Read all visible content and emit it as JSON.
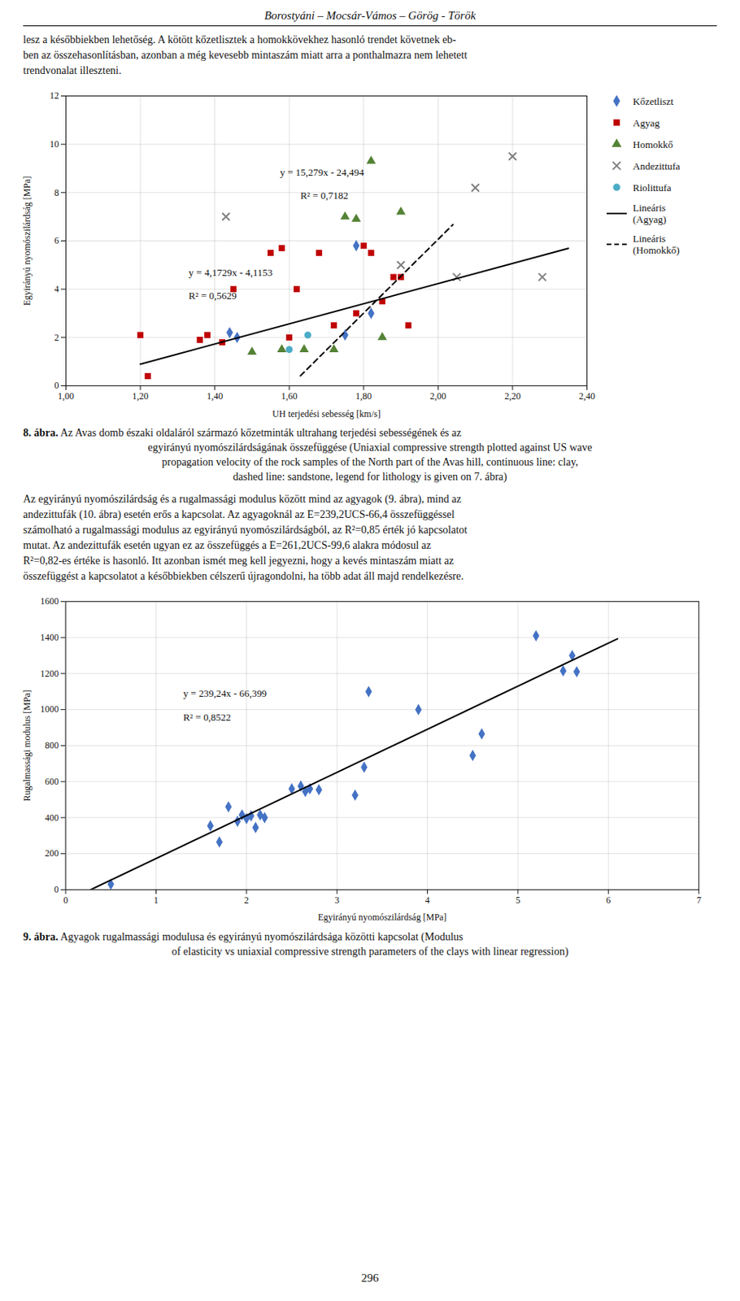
{
  "header": "Borostyáni – Mocsár-Vámos – Görög - Török",
  "paragraphs": [
    [
      "lesz a későbbiekben lehetőség. A kötött kőzetlisztek a homokkövekhez hasonló trendet követnek eb-",
      "ben az összehasonlításban, azonban a még kevesebb mintaszám miatt arra a ponthalmazra nem lehetett",
      "trendvonalat illeszteni."
    ],
    [
      "Az egyirányú nyomószilárdság és a rugalmassági modulus között mind az agyagok (9. ábra), mind az",
      "andezittufák (10. ábra) esetén erős a kapcsolat. Az agyagoknál az E=239,2UCS-66,4 összefüggéssel",
      "számolható a rugalmassági modulus az egyirányú nyomószilárdságból, az R²=0,85 érték jó kapcsolatot",
      "mutat. Az andezittufák esetén ugyan ez az összefüggés a E=261,2UCS-99,6 alakra módosul az",
      "R²=0,82-es értéke is hasonló. Itt azonban ismét meg kell jegyezni, hogy a kevés mintaszám miatt az",
      "összefüggést a kapcsolatot a későbbiekben célszerű újragondolni, ha több adat áll majd rendelkezésre."
    ]
  ],
  "captions": [
    {
      "bold": "8. ábra.",
      "lines": [
        " Az Avas domb északi oldaláról származó kőzetminták ultrahang terjedési sebességének és az",
        "egyirányú nyomószilárdságának összefüggése (Uniaxial compressive strength plotted against US wave",
        "propagation velocity of the rock samples of the North part of the Avas hill, continuous line: clay,",
        "dashed line: sandstone, legend for lithology is given on 7. ábra)"
      ]
    },
    {
      "bold": "9. ábra.",
      "lines": [
        " Agyagok rugalmassági modulusa és egyirányú nyomószilárdsága közötti kapcsolat (Modulus",
        "of elasticity vs uniaxial compressive strength parameters of the clays with linear regression)"
      ]
    }
  ],
  "page_number": "296",
  "chart_data": [
    {
      "type": "scatter",
      "xlabel": "UH terjedési sebesség [km/s]",
      "ylabel": "Egyirányú nyomószilárdság [MPa]",
      "xlim": [
        1.0,
        2.4
      ],
      "ylim": [
        0,
        12
      ],
      "xticks": [
        {
          "value": 1.0,
          "label": "1,00"
        },
        {
          "value": 1.2,
          "label": "1,20"
        },
        {
          "value": 1.4,
          "label": "1,40"
        },
        {
          "value": 1.6,
          "label": "1,60"
        },
        {
          "value": 1.8,
          "label": "1,80"
        },
        {
          "value": 2.0,
          "label": "2,00"
        },
        {
          "value": 2.2,
          "label": "2,20"
        },
        {
          "value": 2.4,
          "label": "2,40"
        }
      ],
      "yticks": [
        0,
        2,
        4,
        6,
        8,
        10,
        12
      ],
      "grid": true,
      "legend": "right",
      "series": [
        {
          "name": "Kőzetliszt",
          "color": "#4472C4",
          "marker": "diamond",
          "x": [
            1.44,
            1.46,
            1.75,
            1.78,
            1.82
          ],
          "values": [
            2.2,
            2.0,
            2.1,
            5.8,
            3.0
          ]
        },
        {
          "name": "Agyag",
          "color": "#C00000",
          "marker": "square",
          "x": [
            1.2,
            1.22,
            1.36,
            1.38,
            1.42,
            1.45,
            1.55,
            1.58,
            1.6,
            1.62,
            1.68,
            1.72,
            1.78,
            1.8,
            1.82,
            1.85,
            1.88,
            1.9,
            1.92
          ],
          "values": [
            2.1,
            0.4,
            1.9,
            2.1,
            1.8,
            4.0,
            5.5,
            5.7,
            2.0,
            4.0,
            5.5,
            2.5,
            3.0,
            5.8,
            5.5,
            3.5,
            4.5,
            4.5,
            2.5
          ]
        },
        {
          "name": "Homokkő",
          "color": "#548235",
          "marker": "triangle",
          "x": [
            1.5,
            1.58,
            1.64,
            1.72,
            1.75,
            1.78,
            1.82,
            1.85,
            1.9
          ],
          "values": [
            1.4,
            1.5,
            1.5,
            1.5,
            7.0,
            6.9,
            9.3,
            2.0,
            7.2
          ]
        },
        {
          "name": "Andezittufa",
          "color": "#808080",
          "marker": "x",
          "x": [
            1.43,
            1.9,
            2.05,
            2.1,
            2.2,
            2.28
          ],
          "values": [
            7.0,
            5.0,
            4.5,
            8.2,
            9.5,
            4.5
          ]
        },
        {
          "name": "Riolittufa",
          "color": "#4BACC6",
          "marker": "circle",
          "x": [
            1.6,
            1.65
          ],
          "values": [
            1.5,
            2.1
          ]
        },
        {
          "name": "Lineáris\n(Agyag)",
          "type": "line",
          "color": "#000000",
          "line_style": "solid",
          "x": [
            1.2,
            2.35
          ],
          "values": [
            0.89218,
            5.691015
          ]
        },
        {
          "name": "Lineáris\n(Homokkő)",
          "type": "line",
          "color": "#000000",
          "line_style": "dashed",
          "x": [
            1.63,
            2.04
          ],
          "values": [
            0.41077,
            6.67516
          ]
        }
      ],
      "annotations": [
        {
          "text": "y = 15,279x - 24,494",
          "x": 1.575,
          "y": 8.7
        },
        {
          "text": "R² = 0,7182",
          "x": 1.63,
          "y": 7.75
        },
        {
          "text": "y = 4,1729x - 4,1153",
          "x": 1.33,
          "y": 4.55
        },
        {
          "text": "R² = 0,5629",
          "x": 1.33,
          "y": 3.6
        }
      ]
    },
    {
      "type": "scatter",
      "xlabel": "Egyirányú nyomószilárdság [MPa]",
      "ylabel": "Rugalmassági modulus [MPa]",
      "xlim": [
        0,
        7
      ],
      "ylim": [
        0,
        1600
      ],
      "xticks": [
        0,
        1,
        2,
        3,
        4,
        5,
        6,
        7
      ],
      "yticks": [
        0,
        200,
        400,
        600,
        800,
        1000,
        1200,
        1400,
        1600
      ],
      "grid": true,
      "series": [
        {
          "color": "#4472C4",
          "marker": "diamond",
          "x": [
            0.5,
            1.6,
            1.7,
            1.8,
            1.9,
            1.95,
            2.0,
            2.05,
            2.1,
            2.15,
            2.2,
            2.5,
            2.6,
            2.65,
            2.7,
            2.8,
            3.2,
            3.3,
            3.35,
            3.9,
            4.5,
            4.6,
            5.2,
            5.5,
            5.6,
            5.65
          ],
          "values": [
            30,
            355,
            265,
            460,
            380,
            415,
            395,
            410,
            345,
            415,
            400,
            560,
            575,
            545,
            560,
            555,
            525,
            680,
            1100,
            1000,
            745,
            865,
            1410,
            1215,
            1300,
            1210
          ]
        },
        {
          "type": "line",
          "color": "#000000",
          "line_style": "solid",
          "x": [
            0.28,
            6.1
          ],
          "values": [
            0.5882,
            1392.965
          ]
        }
      ],
      "annotations": [
        {
          "text": "y = 239,24x - 66,399",
          "x": 1.3,
          "y": 1070
        },
        {
          "text": "R² = 0,8522",
          "x": 1.3,
          "y": 940
        }
      ]
    }
  ]
}
